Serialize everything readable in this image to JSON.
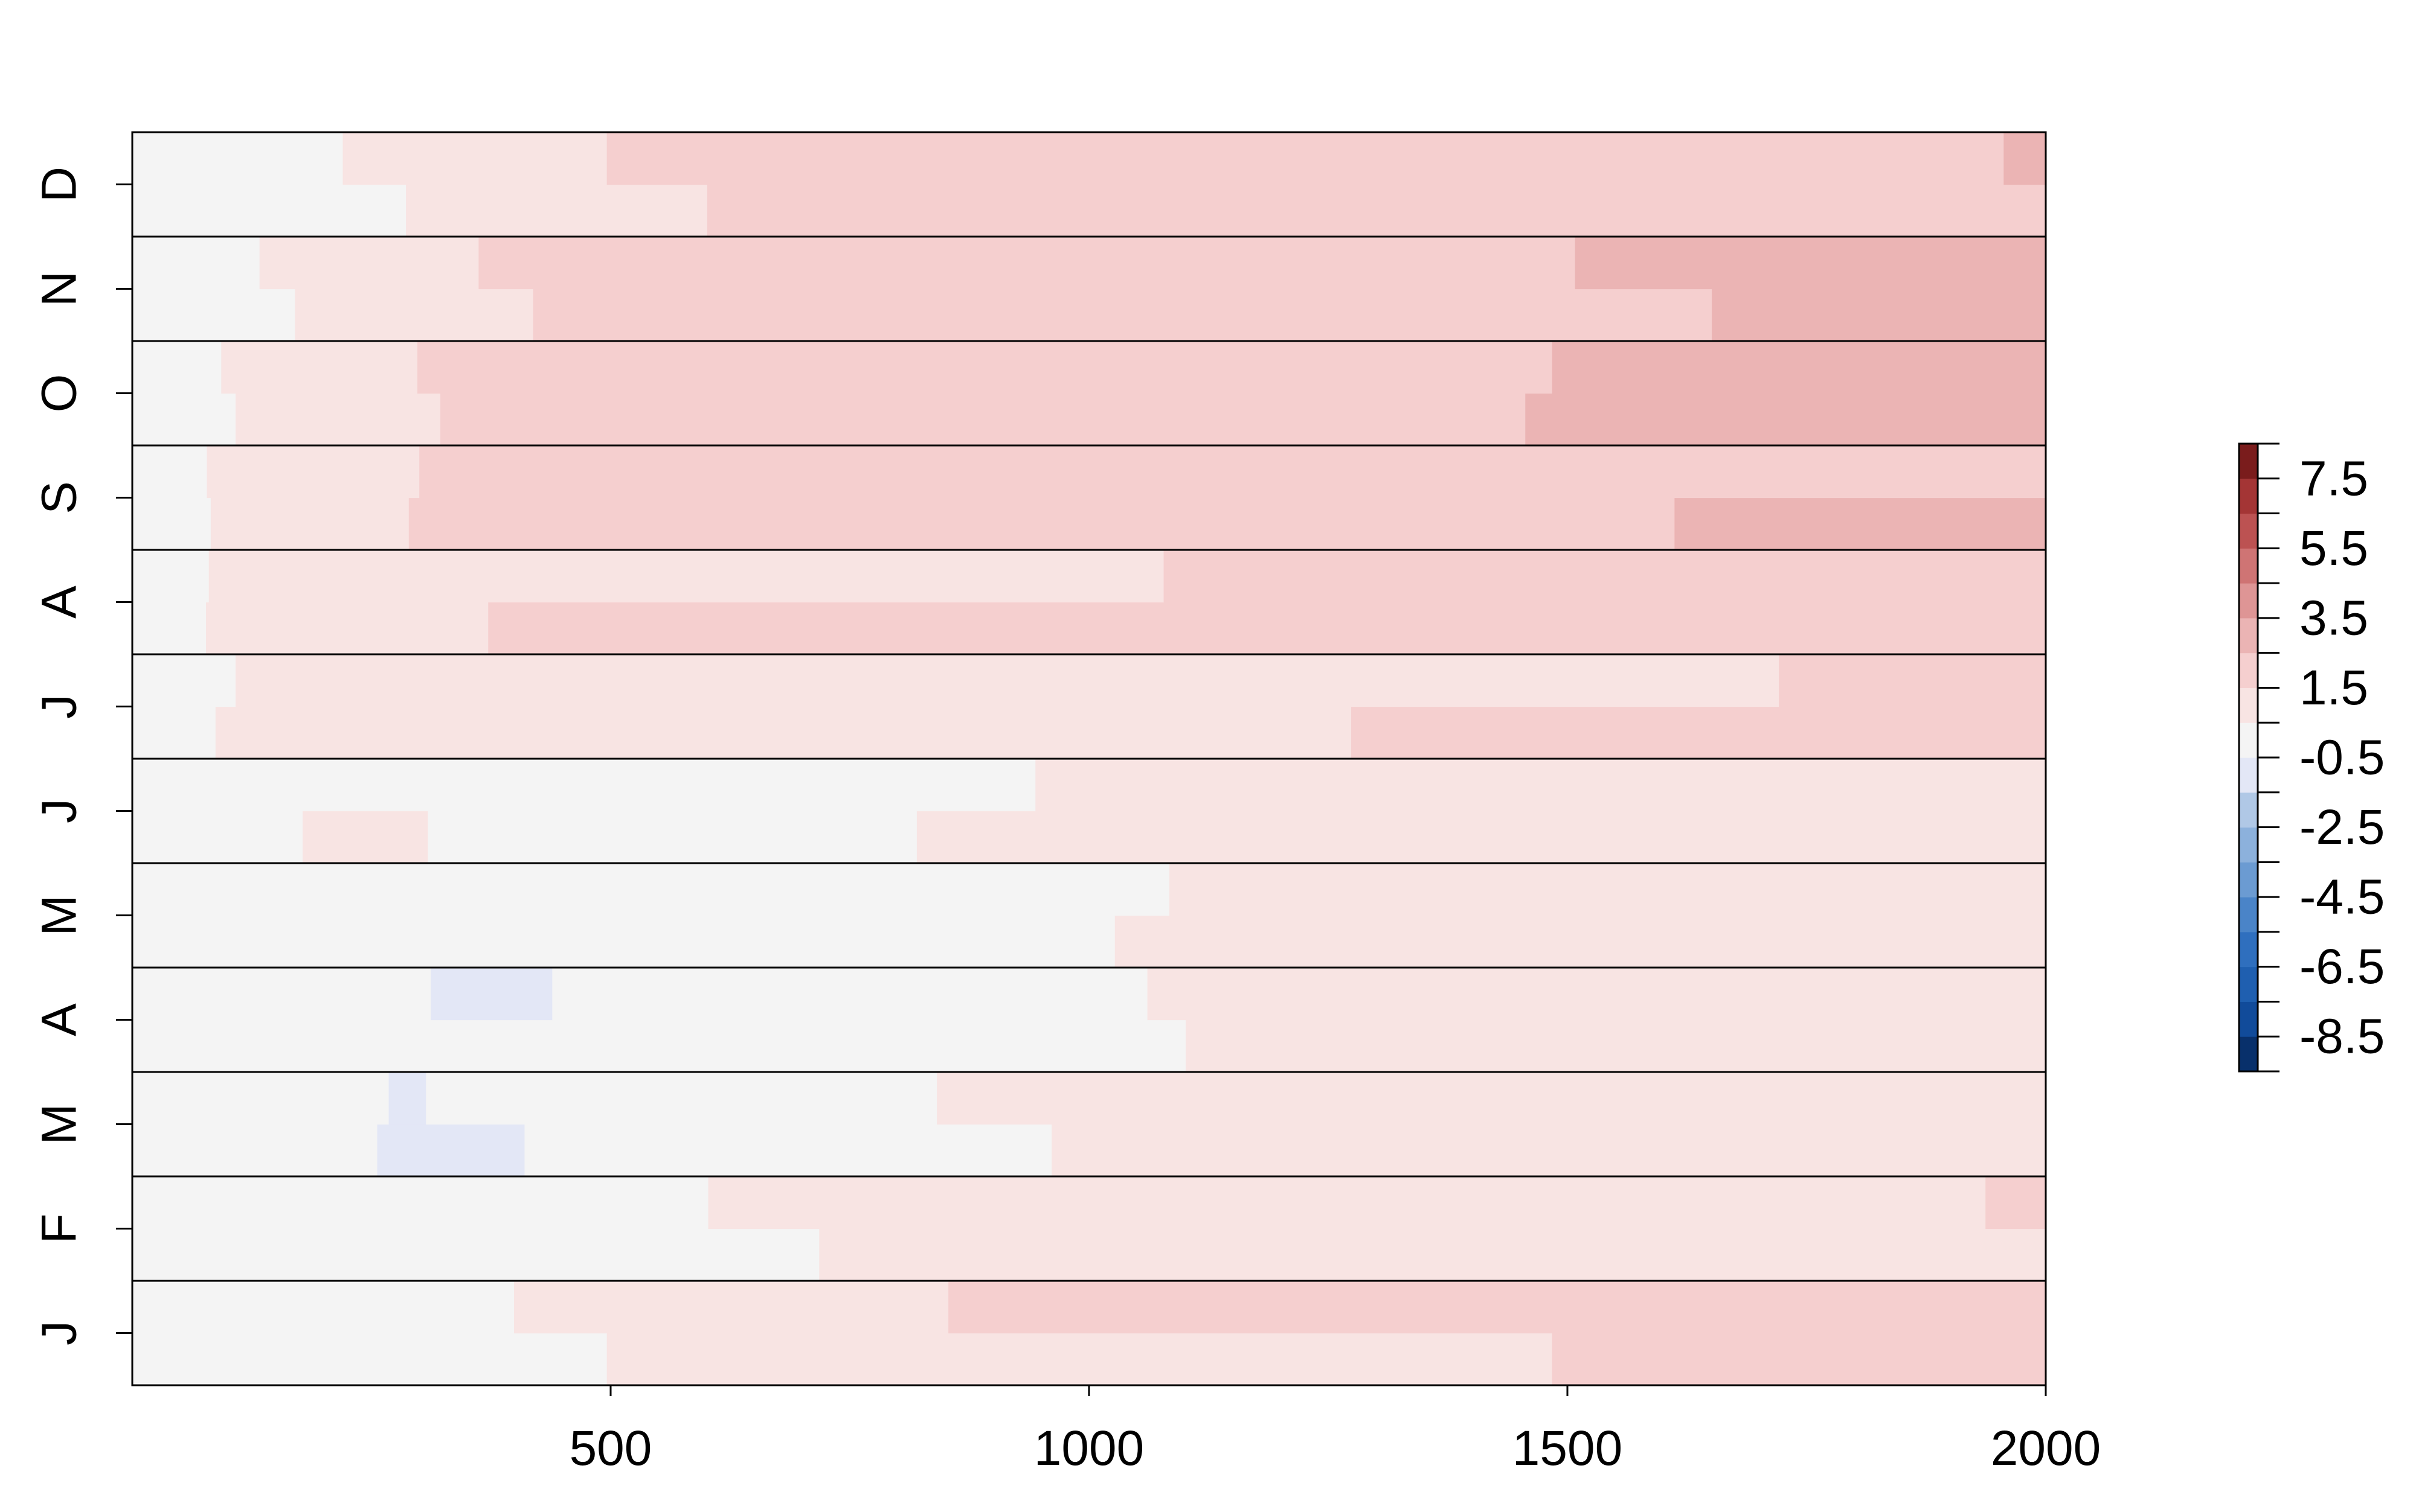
{
  "chart_data": {
    "type": "heatmap",
    "title": "",
    "xlabel": "",
    "ylabel": "",
    "xlim": [
      0,
      2000
    ],
    "x_ticks": [
      {
        "value": 500,
        "label": "500"
      },
      {
        "value": 1000,
        "label": "1000"
      },
      {
        "value": 1500,
        "label": "1500"
      },
      {
        "value": 2000,
        "label": "2000"
      }
    ],
    "rows": [
      "J",
      "F",
      "M",
      "A",
      "M",
      "J",
      "J",
      "A",
      "S",
      "O",
      "N",
      "D"
    ],
    "sub_rows_per_row": 2,
    "grid": false,
    "colorbar": {
      "placement": "right",
      "range": [
        -9.5,
        8.5
      ],
      "step": 1,
      "tick_labels": [
        {
          "value": 7.5,
          "label": "7.5"
        },
        {
          "value": 5.5,
          "label": "5.5"
        },
        {
          "value": 3.5,
          "label": "3.5"
        },
        {
          "value": 1.5,
          "label": "1.5"
        },
        {
          "value": -0.5,
          "label": "-0.5"
        },
        {
          "value": -2.5,
          "label": "-2.5"
        },
        {
          "value": -4.5,
          "label": "-4.5"
        },
        {
          "value": -6.5,
          "label": "-6.5"
        },
        {
          "value": -8.5,
          "label": "-8.5"
        }
      ],
      "colors": [
        {
          "from": -9.5,
          "to": -8.5,
          "color": "#08306b"
        },
        {
          "from": -8.5,
          "to": -7.5,
          "color": "#114b9a"
        },
        {
          "from": -7.5,
          "to": -6.5,
          "color": "#1f5fb0"
        },
        {
          "from": -6.5,
          "to": -5.5,
          "color": "#2f6fbe"
        },
        {
          "from": -5.5,
          "to": -4.5,
          "color": "#4a84c8"
        },
        {
          "from": -4.5,
          "to": -3.5,
          "color": "#6b9bd2"
        },
        {
          "from": -3.5,
          "to": -2.5,
          "color": "#8cb1dc"
        },
        {
          "from": -2.5,
          "to": -1.5,
          "color": "#b0c8e6"
        },
        {
          "from": -1.5,
          "to": -0.5,
          "color": "#e3e7f6"
        },
        {
          "from": -0.5,
          "to": 0.5,
          "color": "#f4f4f4"
        },
        {
          "from": 0.5,
          "to": 1.5,
          "color": "#f8e4e3"
        },
        {
          "from": 1.5,
          "to": 2.5,
          "color": "#f5cfcf"
        },
        {
          "from": 2.5,
          "to": 3.5,
          "color": "#ebb4b4"
        },
        {
          "from": 3.5,
          "to": 4.5,
          "color": "#de9595"
        },
        {
          "from": 4.5,
          "to": 5.5,
          "color": "#cf7474"
        },
        {
          "from": 5.5,
          "to": 6.5,
          "color": "#bc5252"
        },
        {
          "from": 6.5,
          "to": 7.5,
          "color": "#a43535"
        },
        {
          "from": 7.5,
          "to": 8.5,
          "color": "#7a1c1c"
        }
      ]
    },
    "cells": [
      {
        "row": 0,
        "sub": 0,
        "segments": [
          {
            "x0": 0,
            "x1": 496,
            "value": 0
          },
          {
            "x0": 496,
            "x1": 1484,
            "value": 1
          },
          {
            "x0": 1484,
            "x1": 2000,
            "value": 2
          }
        ]
      },
      {
        "row": 0,
        "sub": 1,
        "segments": [
          {
            "x0": 0,
            "x1": 399,
            "value": 0
          },
          {
            "x0": 399,
            "x1": 853,
            "value": 1
          },
          {
            "x0": 853,
            "x1": 2000,
            "value": 2
          }
        ]
      },
      {
        "row": 1,
        "sub": 0,
        "segments": [
          {
            "x0": 0,
            "x1": 718,
            "value": 0
          },
          {
            "x0": 718,
            "x1": 2000,
            "value": 1
          }
        ]
      },
      {
        "row": 1,
        "sub": 1,
        "segments": [
          {
            "x0": 0,
            "x1": 602,
            "value": 0
          },
          {
            "x0": 602,
            "x1": 1937,
            "value": 1
          },
          {
            "x0": 1937,
            "x1": 2000,
            "value": 2
          }
        ]
      },
      {
        "row": 2,
        "sub": 0,
        "segments": [
          {
            "x0": 0,
            "x1": 256,
            "value": 0
          },
          {
            "x0": 256,
            "x1": 410,
            "value": -1
          },
          {
            "x0": 410,
            "x1": 961,
            "value": 0
          },
          {
            "x0": 961,
            "x1": 2000,
            "value": 1
          }
        ]
      },
      {
        "row": 2,
        "sub": 1,
        "segments": [
          {
            "x0": 0,
            "x1": 268,
            "value": 0
          },
          {
            "x0": 268,
            "x1": 307,
            "value": -1
          },
          {
            "x0": 307,
            "x1": 841,
            "value": 0
          },
          {
            "x0": 841,
            "x1": 2000,
            "value": 1
          }
        ]
      },
      {
        "row": 3,
        "sub": 0,
        "segments": [
          {
            "x0": 0,
            "x1": 1101,
            "value": 0
          },
          {
            "x0": 1101,
            "x1": 2000,
            "value": 1
          }
        ]
      },
      {
        "row": 3,
        "sub": 1,
        "segments": [
          {
            "x0": 0,
            "x1": 312,
            "value": 0
          },
          {
            "x0": 312,
            "x1": 439,
            "value": -1
          },
          {
            "x0": 439,
            "x1": 1061,
            "value": 0
          },
          {
            "x0": 1061,
            "x1": 2000,
            "value": 1
          }
        ]
      },
      {
        "row": 4,
        "sub": 0,
        "segments": [
          {
            "x0": 0,
            "x1": 1027,
            "value": 0
          },
          {
            "x0": 1027,
            "x1": 2000,
            "value": 1
          }
        ]
      },
      {
        "row": 4,
        "sub": 1,
        "segments": [
          {
            "x0": 0,
            "x1": 1084,
            "value": 0
          },
          {
            "x0": 1084,
            "x1": 2000,
            "value": 1
          }
        ]
      },
      {
        "row": 5,
        "sub": 0,
        "segments": [
          {
            "x0": 0,
            "x1": 178,
            "value": 0
          },
          {
            "x0": 178,
            "x1": 309,
            "value": 1
          },
          {
            "x0": 309,
            "x1": 820,
            "value": 0
          },
          {
            "x0": 820,
            "x1": 2000,
            "value": 1
          }
        ]
      },
      {
        "row": 5,
        "sub": 1,
        "segments": [
          {
            "x0": 0,
            "x1": 944,
            "value": 0
          },
          {
            "x0": 944,
            "x1": 2000,
            "value": 1
          }
        ]
      },
      {
        "row": 6,
        "sub": 0,
        "segments": [
          {
            "x0": 0,
            "x1": 87,
            "value": 0
          },
          {
            "x0": 87,
            "x1": 1274,
            "value": 1
          },
          {
            "x0": 1274,
            "x1": 2000,
            "value": 2
          }
        ]
      },
      {
        "row": 6,
        "sub": 1,
        "segments": [
          {
            "x0": 0,
            "x1": 108,
            "value": 0
          },
          {
            "x0": 108,
            "x1": 1721,
            "value": 1
          },
          {
            "x0": 1721,
            "x1": 2000,
            "value": 2
          }
        ]
      },
      {
        "row": 7,
        "sub": 0,
        "segments": [
          {
            "x0": 0,
            "x1": 77,
            "value": 0
          },
          {
            "x0": 77,
            "x1": 372,
            "value": 1
          },
          {
            "x0": 372,
            "x1": 2000,
            "value": 2
          }
        ]
      },
      {
        "row": 7,
        "sub": 1,
        "segments": [
          {
            "x0": 0,
            "x1": 80,
            "value": 0
          },
          {
            "x0": 80,
            "x1": 1078,
            "value": 1
          },
          {
            "x0": 1078,
            "x1": 2000,
            "value": 2
          }
        ]
      },
      {
        "row": 8,
        "sub": 0,
        "segments": [
          {
            "x0": 0,
            "x1": 82,
            "value": 0
          },
          {
            "x0": 82,
            "x1": 289,
            "value": 1
          },
          {
            "x0": 289,
            "x1": 1612,
            "value": 2
          },
          {
            "x0": 1612,
            "x1": 2000,
            "value": 3
          }
        ]
      },
      {
        "row": 8,
        "sub": 1,
        "segments": [
          {
            "x0": 0,
            "x1": 78,
            "value": 0
          },
          {
            "x0": 78,
            "x1": 300,
            "value": 1
          },
          {
            "x0": 300,
            "x1": 2000,
            "value": 2
          }
        ]
      },
      {
        "row": 9,
        "sub": 0,
        "segments": [
          {
            "x0": 0,
            "x1": 108,
            "value": 0
          },
          {
            "x0": 108,
            "x1": 322,
            "value": 1
          },
          {
            "x0": 322,
            "x1": 1456,
            "value": 2
          },
          {
            "x0": 1456,
            "x1": 2000,
            "value": 3
          }
        ]
      },
      {
        "row": 9,
        "sub": 1,
        "segments": [
          {
            "x0": 0,
            "x1": 93,
            "value": 0
          },
          {
            "x0": 93,
            "x1": 298,
            "value": 1
          },
          {
            "x0": 298,
            "x1": 1484,
            "value": 2
          },
          {
            "x0": 1484,
            "x1": 2000,
            "value": 3
          }
        ]
      },
      {
        "row": 10,
        "sub": 0,
        "segments": [
          {
            "x0": 0,
            "x1": 170,
            "value": 0
          },
          {
            "x0": 170,
            "x1": 419,
            "value": 1
          },
          {
            "x0": 419,
            "x1": 1651,
            "value": 2
          },
          {
            "x0": 1651,
            "x1": 2000,
            "value": 3
          }
        ]
      },
      {
        "row": 10,
        "sub": 1,
        "segments": [
          {
            "x0": 0,
            "x1": 133,
            "value": 0
          },
          {
            "x0": 133,
            "x1": 362,
            "value": 1
          },
          {
            "x0": 362,
            "x1": 1508,
            "value": 2
          },
          {
            "x0": 1508,
            "x1": 2000,
            "value": 3
          }
        ]
      },
      {
        "row": 11,
        "sub": 0,
        "segments": [
          {
            "x0": 0,
            "x1": 286,
            "value": 0
          },
          {
            "x0": 286,
            "x1": 601,
            "value": 1
          },
          {
            "x0": 601,
            "x1": 2000,
            "value": 2
          }
        ]
      },
      {
        "row": 11,
        "sub": 1,
        "segments": [
          {
            "x0": 0,
            "x1": 220,
            "value": 0
          },
          {
            "x0": 220,
            "x1": 496,
            "value": 1
          },
          {
            "x0": 496,
            "x1": 1956,
            "value": 2
          },
          {
            "x0": 1956,
            "x1": 2000,
            "value": 3
          }
        ]
      }
    ]
  }
}
